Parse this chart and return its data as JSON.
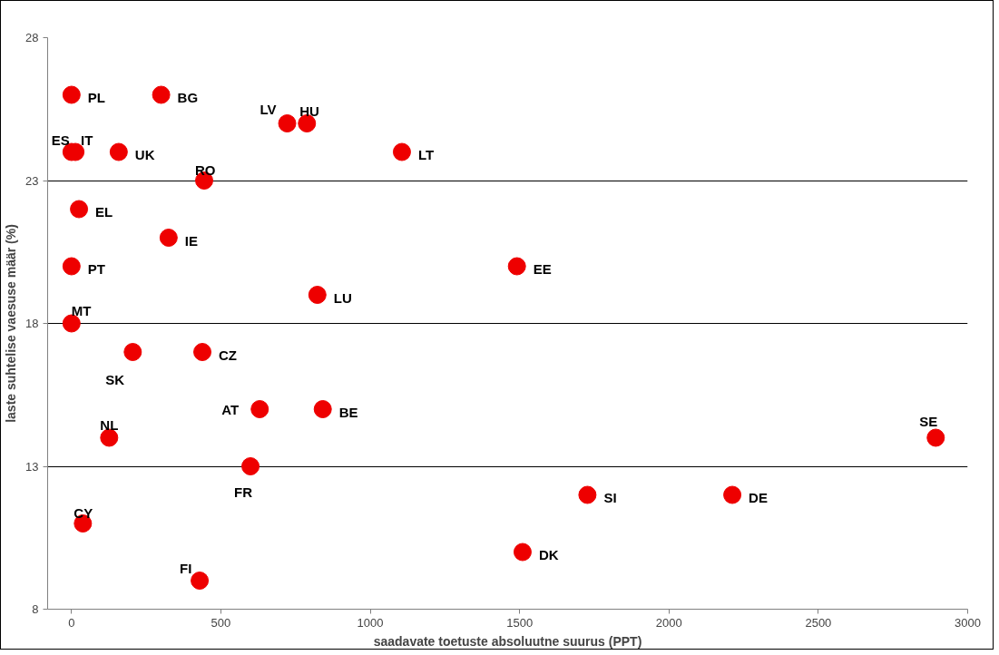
{
  "chart_data": {
    "type": "scatter",
    "xlabel": "saadavate toetuste absoluutne suurus (PPT)",
    "ylabel": "laste suhtelise vaesuse määr (%)",
    "x": [
      0,
      300,
      722,
      788,
      0,
      13,
      158,
      1106,
      444,
      25,
      325,
      0,
      1491,
      823,
      0,
      205,
      438,
      630,
      841,
      126,
      2893,
      599,
      1727,
      2212,
      38,
      1510,
      429
    ],
    "series": [
      {
        "color": "#ee0000",
        "values": [
          26,
          26,
          25,
          25,
          24,
          24,
          24,
          24,
          23,
          22,
          21,
          20,
          20,
          19,
          18,
          17,
          17,
          15,
          15,
          14,
          14,
          13,
          12,
          12,
          11,
          10,
          9
        ]
      }
    ],
    "annotations": [
      {
        "text": "PL",
        "x": 0,
        "y": 26
      },
      {
        "text": "BG",
        "x": 300,
        "y": 26
      },
      {
        "text": "LV",
        "x": 722,
        "y": 25
      },
      {
        "text": "HU",
        "x": 788,
        "y": 25
      },
      {
        "text": "ES",
        "x": 0,
        "y": 24
      },
      {
        "text": "IT",
        "x": 13,
        "y": 24
      },
      {
        "text": "UK",
        "x": 158,
        "y": 24
      },
      {
        "text": "LT",
        "x": 1106,
        "y": 24
      },
      {
        "text": "RO",
        "x": 444,
        "y": 23
      },
      {
        "text": "EL",
        "x": 25,
        "y": 22
      },
      {
        "text": "IE",
        "x": 325,
        "y": 21
      },
      {
        "text": "PT",
        "x": 0,
        "y": 20
      },
      {
        "text": "EE",
        "x": 1491,
        "y": 20
      },
      {
        "text": "LU",
        "x": 823,
        "y": 19
      },
      {
        "text": "MT",
        "x": 0,
        "y": 18
      },
      {
        "text": "SK",
        "x": 205,
        "y": 17
      },
      {
        "text": "CZ",
        "x": 438,
        "y": 17
      },
      {
        "text": "AT",
        "x": 630,
        "y": 15
      },
      {
        "text": "BE",
        "x": 841,
        "y": 15
      },
      {
        "text": "NL",
        "x": 126,
        "y": 14
      },
      {
        "text": "SE",
        "x": 2893,
        "y": 14
      },
      {
        "text": "FR",
        "x": 599,
        "y": 13
      },
      {
        "text": "SI",
        "x": 1727,
        "y": 12
      },
      {
        "text": "DE",
        "x": 2212,
        "y": 12
      },
      {
        "text": "CY",
        "x": 38,
        "y": 11
      },
      {
        "text": "DK",
        "x": 1510,
        "y": 10
      },
      {
        "text": "FI",
        "x": 429,
        "y": 9
      }
    ],
    "xlim": [
      -80,
      3000
    ],
    "ylim": [
      8,
      28
    ],
    "xticks": [
      0,
      500,
      1000,
      1500,
      2000,
      2500,
      3000
    ],
    "yticks": [
      8,
      13,
      18,
      23,
      28
    ],
    "grid": "y",
    "marker": "circle"
  }
}
